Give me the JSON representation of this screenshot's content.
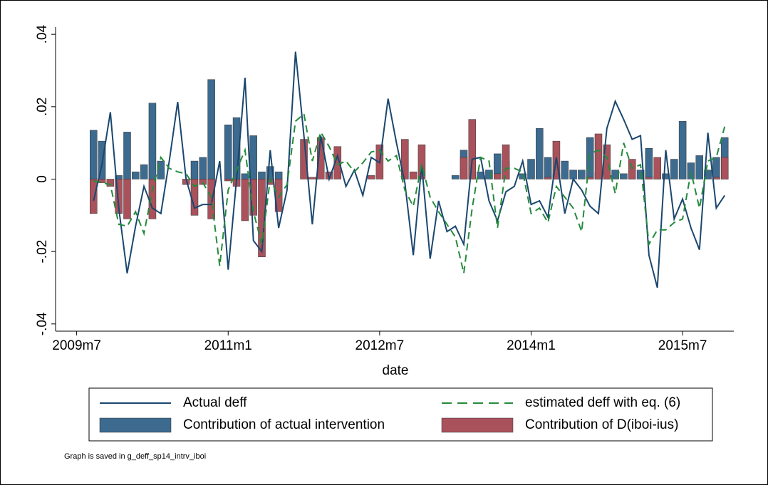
{
  "chart_data": {
    "type": "combo",
    "x_label": "date",
    "note": "Graph is saved in g_deff_sp14_intrv_iboi",
    "categories": [
      "2009m9",
      "2009m10",
      "2009m11",
      "2009m12",
      "2010m1",
      "2010m2",
      "2010m3",
      "2010m4",
      "2010m5",
      "2010m6",
      "2010m7",
      "2010m8",
      "2010m9",
      "2010m10",
      "2010m11",
      "2010m12",
      "2011m1",
      "2011m2",
      "2011m3",
      "2011m4",
      "2011m5",
      "2011m6",
      "2011m7",
      "2011m8",
      "2011m9",
      "2011m10",
      "2011m11",
      "2011m12",
      "2012m1",
      "2012m2",
      "2012m3",
      "2012m4",
      "2012m5",
      "2012m6",
      "2012m7",
      "2012m8",
      "2012m9",
      "2012m10",
      "2012m11",
      "2012m12",
      "2013m1",
      "2013m2",
      "2013m3",
      "2013m4",
      "2013m5",
      "2013m6",
      "2013m7",
      "2013m8",
      "2013m9",
      "2013m10",
      "2013m11",
      "2013m12",
      "2014m1",
      "2014m2",
      "2014m3",
      "2014m4",
      "2014m5",
      "2014m6",
      "2014m7",
      "2014m8",
      "2014m9",
      "2014m10",
      "2014m11",
      "2014m12",
      "2015m1",
      "2015m2",
      "2015m3",
      "2015m4",
      "2015m5",
      "2015m6",
      "2015m7",
      "2015m8",
      "2015m9",
      "2015m10",
      "2015m11",
      "2015m12"
    ],
    "xlim": [
      "2009m5",
      "2016m1"
    ],
    "xticks": [
      "2009m7",
      "2011m1",
      "2012m7",
      "2014m1",
      "2015m7"
    ],
    "ylim": [
      -0.042,
      0.042
    ],
    "yticks": [
      {
        "value": -0.04,
        "label": "-.04"
      },
      {
        "value": -0.02,
        "label": "-.02"
      },
      0,
      {
        "value": 0.02,
        "label": ".02"
      },
      {
        "value": 0.04,
        "label": ".04"
      }
    ],
    "series": [
      {
        "name": "Actual deff",
        "type": "line",
        "color": "#1a476f",
        "values": [
          -0.006,
          0.004,
          0.0185,
          -0.008,
          -0.026,
          -0.013,
          -0.002,
          -0.008,
          -0.0095,
          0.005,
          0.0213,
          0.0,
          -0.008,
          -0.007,
          -0.007,
          0.005,
          -0.025,
          0.0,
          0.028,
          -0.017,
          -0.02,
          0.008,
          -0.0135,
          -0.003,
          0.0352,
          0.012,
          -0.0125,
          0.012,
          0.0,
          0.0065,
          -0.002,
          0.0025,
          -0.0045,
          0.006,
          0.0045,
          0.0222,
          0.01,
          -0.001,
          -0.021,
          0.004,
          -0.022,
          -0.006,
          -0.0145,
          -0.013,
          -0.018,
          0.0055,
          0.006,
          -0.006,
          -0.0115,
          -0.0035,
          -0.002,
          0.005,
          -0.007,
          -0.006,
          -0.0105,
          0.006,
          -0.0095,
          0.0,
          -0.003,
          -0.0075,
          -0.0095,
          0.014,
          0.0215,
          0.0165,
          0.011,
          0.012,
          -0.021,
          -0.03,
          0.008,
          -0.011,
          -0.0055,
          -0.0135,
          -0.0195,
          0.0128,
          -0.008,
          -0.0045
        ]
      },
      {
        "name": "estimated deff with eq. (6)",
        "type": "line",
        "dashed": true,
        "color": "#248b3c",
        "values": [
          -0.0005,
          -0.001,
          -0.0015,
          -0.0125,
          -0.013,
          -0.009,
          -0.015,
          -0.003,
          0.006,
          0.003,
          0.002,
          0.0015,
          -0.002,
          -0.001,
          -0.005,
          -0.024,
          -0.003,
          0.0025,
          0.008,
          -0.009,
          -0.018,
          0.0,
          -0.005,
          -0.0015,
          0.016,
          0.018,
          0.005,
          0.013,
          0.009,
          0.004,
          0.005,
          0.002,
          0.0045,
          0.0075,
          0.008,
          0.005,
          0.0065,
          -0.003,
          -0.0075,
          0.004,
          -0.005,
          -0.009,
          -0.0125,
          -0.016,
          -0.026,
          -0.008,
          0.006,
          0.005,
          -0.0135,
          0.003,
          0.003,
          0.002,
          -0.0095,
          -0.008,
          -0.012,
          -0.002,
          -0.005,
          -0.008,
          -0.0145,
          0.007,
          0.008,
          0.006,
          -0.004,
          0.01,
          0.003,
          0.004,
          -0.018,
          -0.014,
          -0.014,
          -0.012,
          -0.011,
          0.002,
          -0.008,
          0.005,
          0.006,
          0.0145
        ]
      },
      {
        "name": "Contribution of actual intervention",
        "type": "bar",
        "color": "#3d6a8f",
        "values": [
          0.0135,
          0.0105,
          0,
          0.001,
          0.013,
          0.002,
          0.004,
          0.021,
          0.005,
          0,
          0,
          0,
          0.005,
          0.006,
          0.0275,
          0,
          0.015,
          0.017,
          0.0015,
          0.012,
          0.002,
          0.0035,
          0.002,
          0,
          0,
          0,
          0,
          0,
          0,
          0,
          0,
          0,
          0,
          0,
          0,
          0,
          0,
          0,
          0,
          0,
          0,
          0,
          0,
          0.001,
          0.008,
          0.005,
          0.002,
          0.0025,
          0.007,
          0.005,
          0,
          0.0015,
          0.0055,
          0.014,
          0.006,
          0.0015,
          0.005,
          0.0025,
          0.0025,
          0.0115,
          0.002,
          0.003,
          0.0025,
          0.0015,
          0.004,
          0.0025,
          0.0085,
          0.001,
          0.0015,
          0.0055,
          0.016,
          0.0045,
          0.0065,
          0.0025,
          0.006,
          0.0115
        ]
      },
      {
        "name": "Contribution of D(iboi-ius)",
        "type": "bar",
        "color": "#a9525c",
        "values": [
          -0.0095,
          -0.001,
          -0.002,
          -0.0095,
          -0.011,
          0,
          0,
          -0.011,
          0,
          0,
          0,
          -0.0015,
          -0.01,
          -0.0015,
          -0.011,
          0,
          -0.0005,
          -0.002,
          -0.0115,
          -0.01,
          -0.0215,
          -0.0015,
          -0.009,
          0,
          0,
          0.011,
          0.0005,
          0.0115,
          0.002,
          0.009,
          0,
          0,
          0,
          0.001,
          0.0095,
          0,
          0,
          0.011,
          0.002,
          0.0095,
          0,
          0,
          0,
          0,
          0.006,
          0.0165,
          0,
          0,
          0.0015,
          0.0095,
          0,
          0,
          0,
          0,
          0.0005,
          0.0105,
          0,
          0,
          0,
          0.0005,
          0.0125,
          0.0095,
          0,
          0,
          0.0055,
          0,
          0.0005,
          0.006,
          0,
          0,
          0,
          0,
          0,
          0,
          0.0005,
          0.006
        ]
      }
    ]
  }
}
